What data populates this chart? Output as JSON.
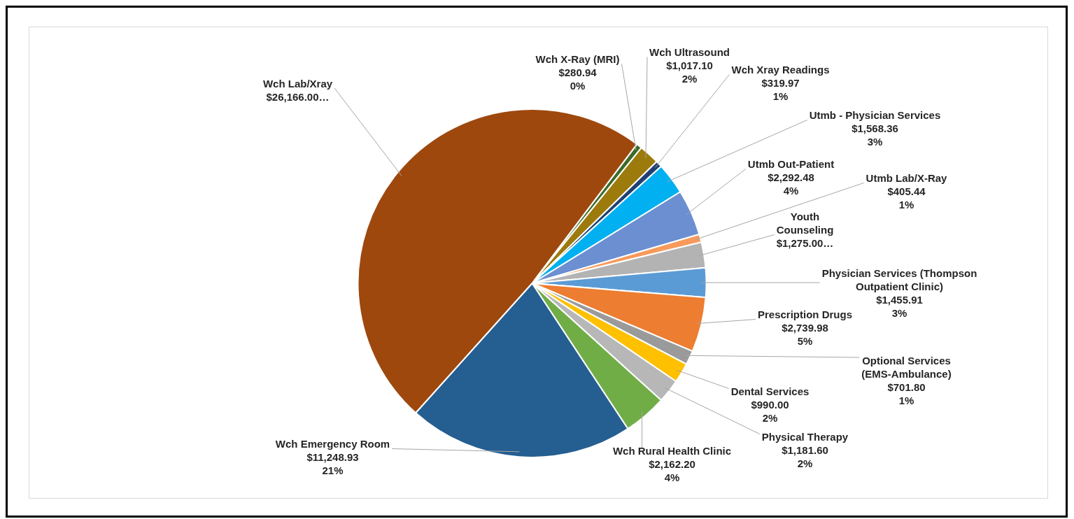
{
  "chart_data": {
    "type": "pie",
    "categories": [
      "Wch X-Ray (MRI)",
      "Wch Ultrasound",
      "Wch Xray Readings",
      "Utmb - Physician Services",
      "Utmb Out-Patient",
      "Utmb Lab/X-Ray",
      "Youth Counseling",
      "Physician Services (Thompson Outpatient Clinic)",
      "Prescription Drugs",
      "Optional Services (EMS-Ambulance)",
      "Dental Services",
      "Physical Therapy",
      "Wch Rural Health Clinic",
      "Wch Emergency Room",
      "Wch Lab/Xray"
    ],
    "values": [
      280.94,
      1017.1,
      319.97,
      1568.36,
      2292.48,
      405.44,
      1275.0,
      1455.91,
      2739.98,
      701.8,
      990.0,
      1181.6,
      2162.2,
      11248.93,
      26166.0
    ],
    "value_labels": [
      "$280.94\n0%",
      "$1,017.10\n2%",
      "$319.97\n1%",
      "$1,568.36\n3%",
      "$2,292.48\n4%",
      "$405.44\n1%",
      "$1,275.00…",
      "$1,455.91\n3%",
      "$2,739.98\n5%",
      "$701.80\n1%",
      "$990.00\n2%",
      "$1,181.60\n2%",
      "$2,162.20\n4%",
      "$11,248.93\n21%",
      "$26,166.00…"
    ],
    "colors": [
      "#3e6b2a",
      "#9c7b0c",
      "#203f74",
      "#00b0f0",
      "#6b8fd1",
      "#f79a5b",
      "#b3b3b3",
      "#5b9bd5",
      "#ed7d31",
      "#9a9a9a",
      "#ffc000",
      "#b7b7b7",
      "#70ad47",
      "#255e91",
      "#9e480e"
    ],
    "legend": false
  }
}
